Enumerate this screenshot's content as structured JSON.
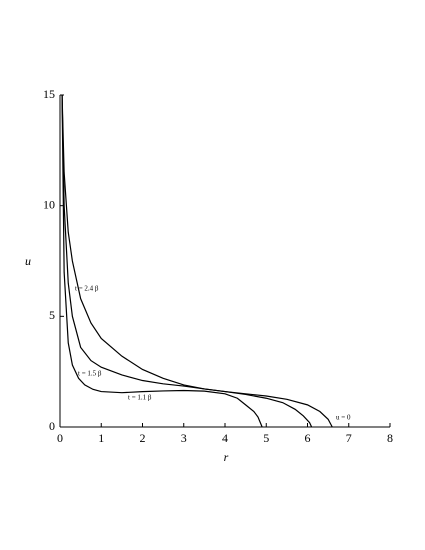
{
  "chart_data": {
    "type": "line",
    "x_label": "r",
    "y_label": "u",
    "xlim": [
      0,
      8
    ],
    "ylim": [
      0,
      15
    ],
    "xticks": [
      0,
      1,
      2,
      3,
      4,
      5,
      6,
      7,
      8
    ],
    "yticks": [
      0,
      5,
      10,
      15
    ],
    "annotations": [
      "u = 0"
    ],
    "series": [
      {
        "name": "t = 1.1 β",
        "color": "#000000",
        "x": [
          0.05,
          0.1,
          0.2,
          0.3,
          0.45,
          0.6,
          0.8,
          1,
          1.5,
          2,
          2.5,
          3,
          3.5,
          4,
          4.3,
          4.5,
          4.7,
          4.8,
          4.9
        ],
        "values": [
          15,
          7,
          3.8,
          2.8,
          2.2,
          1.9,
          1.7,
          1.6,
          1.55,
          1.6,
          1.63,
          1.65,
          1.62,
          1.5,
          1.3,
          1.0,
          0.7,
          0.45,
          0
        ]
      },
      {
        "name": "t = 1.5 β",
        "color": "#000000",
        "x": [
          0.05,
          0.1,
          0.2,
          0.3,
          0.5,
          0.75,
          1,
          1.5,
          2,
          2.5,
          3,
          3.5,
          4,
          4.5,
          5,
          5.4,
          5.7,
          5.9,
          6.05,
          6.1
        ],
        "values": [
          15,
          10,
          6.5,
          5,
          3.6,
          3.0,
          2.7,
          2.35,
          2.1,
          1.95,
          1.85,
          1.72,
          1.6,
          1.47,
          1.3,
          1.1,
          0.8,
          0.5,
          0.2,
          0
        ]
      },
      {
        "name": "t = 2.4 β",
        "color": "#000000",
        "x": [
          0.05,
          0.1,
          0.2,
          0.3,
          0.5,
          0.75,
          1,
          1.5,
          2,
          2.5,
          3,
          3.5,
          4,
          4.5,
          5,
          5.5,
          6,
          6.3,
          6.5,
          6.6
        ],
        "values": [
          15,
          11.5,
          8.8,
          7.5,
          5.8,
          4.7,
          4.0,
          3.2,
          2.6,
          2.2,
          1.9,
          1.72,
          1.6,
          1.5,
          1.4,
          1.25,
          1.0,
          0.7,
          0.35,
          0
        ]
      }
    ]
  }
}
